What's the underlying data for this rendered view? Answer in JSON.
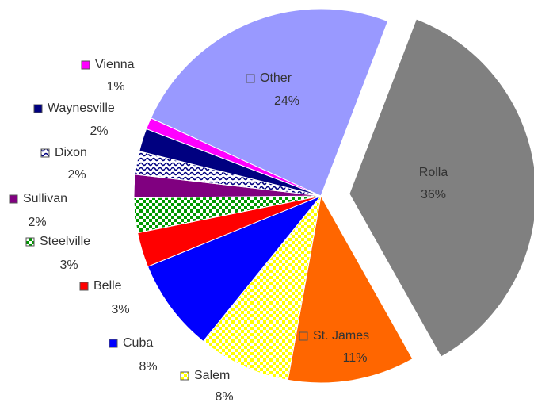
{
  "chart_data": {
    "type": "pie",
    "categories": [
      "Rolla",
      "St. James",
      "Salem",
      "Cuba",
      "Belle",
      "Steelville",
      "Sullivan",
      "Dixon",
      "Waynesville",
      "Vienna",
      "Other"
    ],
    "values": [
      36,
      11,
      8,
      8,
      3,
      3,
      2,
      2,
      2,
      1,
      24
    ],
    "value_labels": [
      "36%",
      "11%",
      "8%",
      "8%",
      "3%",
      "3%",
      "2%",
      "2%",
      "2%",
      "1%",
      "24%"
    ],
    "colors": [
      "#808080",
      "#ff6600",
      "#ffff00",
      "#0000ff",
      "#ff0000",
      "#009900",
      "#800080",
      "#000080",
      "#000080",
      "#ff00ff",
      "#9999ff"
    ],
    "patterns": [
      "solid",
      "solid",
      "checker",
      "solid",
      "solid",
      "checker",
      "solid",
      "wave",
      "solid",
      "solid",
      "solid"
    ],
    "exploded": "Rolla"
  }
}
